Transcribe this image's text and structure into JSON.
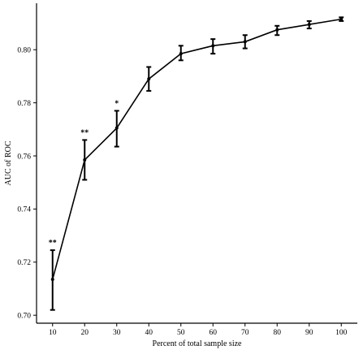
{
  "chart_data": {
    "type": "line",
    "title": "",
    "xlabel": "Percent of total sample size",
    "ylabel": "AUC of ROC",
    "x": [
      10,
      20,
      30,
      40,
      50,
      60,
      70,
      80,
      90,
      100
    ],
    "x_tick_labels": [
      "10",
      "20",
      "30",
      "40",
      "50",
      "60",
      "70",
      "80",
      "90",
      "100"
    ],
    "xlim": [
      5,
      105
    ],
    "ylim": [
      0.697,
      0.8175
    ],
    "y_ticks": [
      0.7,
      0.72,
      0.74,
      0.76,
      0.78,
      0.8
    ],
    "y_tick_labels": [
      "0.70",
      "0.72",
      "0.74",
      "0.76",
      "0.78",
      "0.80"
    ],
    "grid": false,
    "series": [
      {
        "values": [
          0.7135,
          0.7585,
          0.7705,
          0.789,
          0.7985,
          0.8015,
          0.803,
          0.8075,
          0.8095,
          0.8115
        ],
        "err_low": [
          0.702,
          0.751,
          0.7635,
          0.7845,
          0.796,
          0.7985,
          0.8005,
          0.8055,
          0.808,
          0.8108
        ],
        "err_high": [
          0.7245,
          0.766,
          0.777,
          0.7935,
          0.8015,
          0.804,
          0.8055,
          0.809,
          0.8108,
          0.8122
        ],
        "significance": [
          "**",
          "**",
          "*",
          "",
          "",
          "",
          "",
          "",
          "",
          ""
        ]
      }
    ]
  }
}
